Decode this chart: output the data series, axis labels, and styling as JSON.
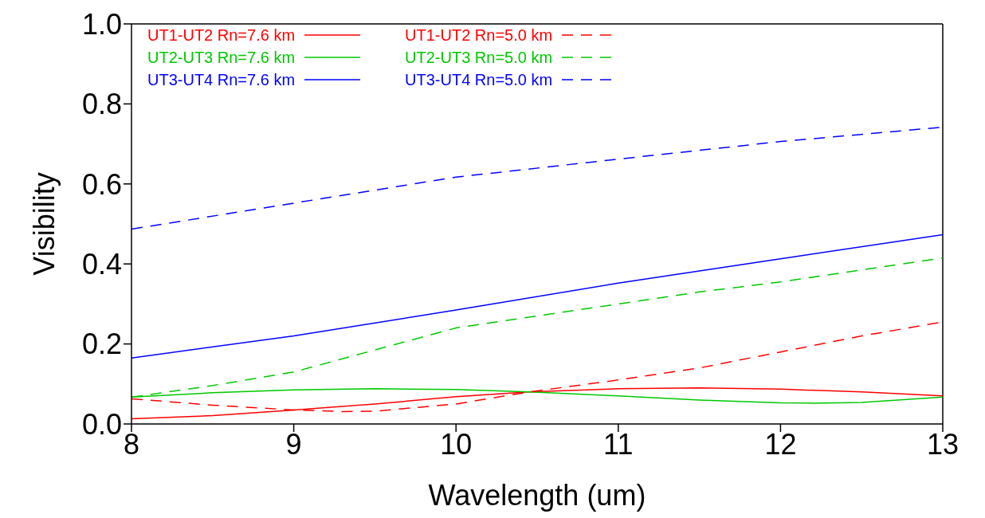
{
  "chart_data": {
    "type": "line",
    "xlabel": "Wavelength (um)",
    "ylabel": "Visibility",
    "xlim": [
      8,
      13
    ],
    "xticks": [
      8,
      9,
      10,
      11,
      12,
      13
    ],
    "ylim": [
      0,
      1
    ],
    "yticks": [
      {
        "value": 0,
        "label": "0.0"
      },
      {
        "value": 0.2,
        "label": "0.2"
      },
      {
        "value": 0.4,
        "label": "0.4"
      },
      {
        "value": 0.6,
        "label": "0.6"
      },
      {
        "value": 0.8,
        "label": "0.8"
      },
      {
        "value": 1,
        "label": "1.0"
      }
    ],
    "legend": "top",
    "marker": "none",
    "series": [
      {
        "name": "UT1-UT2 Rn=7.6 km",
        "color": "#ff0000",
        "line_style": "solid",
        "x": [
          8,
          8.5,
          9,
          9.5,
          10,
          10.45,
          11,
          11.5,
          12,
          12.5,
          13
        ],
        "values": [
          0.013,
          0.021,
          0.035,
          0.05,
          0.068,
          0.08,
          0.088,
          0.09,
          0.087,
          0.08,
          0.07
        ]
      },
      {
        "name": "UT2-UT3 Rn=7.6 km",
        "color": "#00c800",
        "line_style": "solid",
        "x": [
          8,
          8.5,
          9,
          9.5,
          10,
          10.45,
          11,
          11.5,
          12,
          12.2,
          12.5,
          13
        ],
        "values": [
          0.067,
          0.078,
          0.085,
          0.088,
          0.086,
          0.08,
          0.07,
          0.06,
          0.053,
          0.052,
          0.054,
          0.067
        ]
      },
      {
        "name": "UT3-UT4 Rn=7.6 km",
        "color": "#0000ff",
        "line_style": "solid",
        "x": [
          8,
          9,
          10,
          11,
          12,
          13
        ],
        "values": [
          0.165,
          0.22,
          0.285,
          0.352,
          0.413,
          0.473
        ]
      },
      {
        "name": "UT1-UT2 Rn=5.0 km",
        "color": "#ff0000",
        "line_style": "dashed",
        "x": [
          8,
          8.5,
          9,
          9.3,
          9.5,
          10,
          10.45,
          11,
          11.5,
          12,
          12.5,
          13
        ],
        "values": [
          0.063,
          0.047,
          0.035,
          0.031,
          0.032,
          0.05,
          0.08,
          0.11,
          0.14,
          0.18,
          0.22,
          0.255
        ]
      },
      {
        "name": "UT2-UT3 Rn=5.0 km",
        "color": "#00c800",
        "line_style": "dashed",
        "x": [
          8,
          8.5,
          9,
          9.5,
          10,
          10.5,
          11,
          11.5,
          12,
          12.5,
          13
        ],
        "values": [
          0.067,
          0.096,
          0.13,
          0.185,
          0.24,
          0.27,
          0.3,
          0.33,
          0.355,
          0.385,
          0.415
        ]
      },
      {
        "name": "UT3-UT4 Rn=5.0 km",
        "color": "#0000ff",
        "line_style": "dashed",
        "x": [
          8,
          9,
          10,
          11,
          12,
          13
        ],
        "values": [
          0.487,
          0.552,
          0.617,
          0.662,
          0.706,
          0.742
        ]
      }
    ]
  }
}
